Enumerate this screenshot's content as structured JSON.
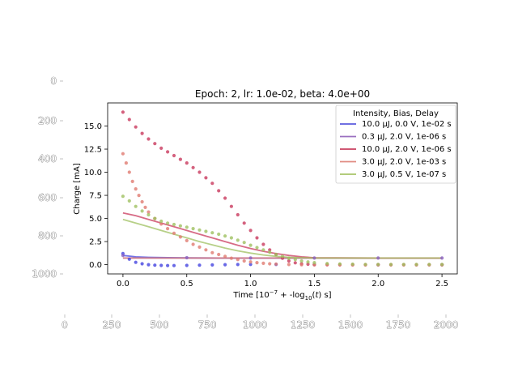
{
  "chart_data": {
    "type": "line",
    "title": "Epoch: 2, lr: 1.0e-02, beta: 4.0e+00",
    "xlabel": "Time [10$^{-7}$ + -log$_{10}$($t$) s]",
    "xlabel_parts": {
      "a": "Time [10",
      "b": "−7",
      "c": " + -log",
      "d": "10",
      "e": "(",
      "f": "t",
      "g": ") s]"
    },
    "ylabel": "Charge [mA]",
    "xlim": [
      -0.12,
      2.62
    ],
    "ylim": [
      -1.0,
      17.5
    ],
    "xticks": [
      0.0,
      0.5,
      1.0,
      1.5,
      2.0,
      2.5
    ],
    "xtick_labels": [
      "0.0",
      "0.5",
      "1.0",
      "1.5",
      "2.0",
      "2.5"
    ],
    "yticks": [
      0.0,
      2.5,
      5.0,
      7.5,
      10.0,
      12.5,
      15.0
    ],
    "ytick_labels": [
      "0.0",
      "2.5",
      "5.0",
      "7.5",
      "10.0",
      "12.5",
      "15.0"
    ],
    "legend": {
      "title": "Intensity, Bias, Delay",
      "placement": "top-right",
      "entries": [
        {
          "label": "10.0 μJ, 0.0 V, 1e-02 s",
          "color": "#5b5bde"
        },
        {
          "label": "0.3 μJ, 2.0 V, 1e-06 s",
          "color": "#9a6fc0"
        },
        {
          "label": "10.0 μJ, 2.0 V, 1e-06 s",
          "color": "#c94060"
        },
        {
          "label": "3.0 μJ, 2.0 V, 1e-03 s",
          "color": "#e08a80"
        },
        {
          "label": "3.0 μJ, 0.5 V, 1e-07 s",
          "color": "#a8c46a"
        }
      ]
    },
    "series": [
      {
        "name": "10.0 μJ, 0.0 V, 1e-02 s",
        "color": "#4444e0",
        "line": {
          "x": [
            0.0,
            0.1,
            0.2,
            0.35,
            0.5,
            0.75,
            1.0,
            1.5,
            2.0,
            2.5
          ],
          "y": [
            1.0,
            0.85,
            0.8,
            0.76,
            0.74,
            0.72,
            0.72,
            0.72,
            0.72,
            0.72
          ]
        },
        "points": {
          "x": [
            0.0,
            0.05,
            0.1,
            0.15,
            0.2,
            0.25,
            0.3,
            0.35,
            0.4,
            0.5,
            0.6,
            0.7,
            0.8,
            0.9,
            1.0,
            1.2,
            1.5,
            2.0,
            2.5
          ],
          "y": [
            1.2,
            0.6,
            0.25,
            0.1,
            0.0,
            -0.05,
            -0.08,
            -0.1,
            -0.1,
            -0.08,
            -0.05,
            -0.03,
            0.0,
            0.02,
            0.03,
            0.03,
            0.02,
            0.0,
            0.0
          ]
        }
      },
      {
        "name": "0.3 μJ, 2.0 V, 1e-06 s",
        "color": "#8a60c0",
        "line": {
          "x": [
            0.0,
            0.5,
            1.0,
            1.5,
            2.0,
            2.5
          ],
          "y": [
            0.72,
            0.72,
            0.72,
            0.72,
            0.72,
            0.72
          ]
        },
        "points": {
          "x": [
            0.0,
            0.5,
            1.0,
            1.5,
            2.0,
            2.5
          ],
          "y": [
            1.0,
            0.75,
            0.72,
            0.72,
            0.72,
            0.72
          ]
        }
      },
      {
        "name": "10.0 μJ, 2.0 V, 1e-06 s",
        "color": "#c93a5e",
        "line": {
          "x": [
            0.0,
            0.1,
            0.2,
            0.3,
            0.4,
            0.5,
            0.6,
            0.7,
            0.8,
            0.9,
            1.0,
            1.1,
            1.2,
            1.3,
            1.4,
            1.5,
            2.0,
            2.5
          ],
          "y": [
            5.6,
            5.3,
            4.9,
            4.5,
            4.1,
            3.7,
            3.3,
            2.9,
            2.5,
            2.1,
            1.75,
            1.45,
            1.2,
            1.0,
            0.85,
            0.75,
            0.72,
            0.72
          ]
        },
        "points": {
          "x": [
            0.0,
            0.05,
            0.1,
            0.15,
            0.2,
            0.25,
            0.3,
            0.35,
            0.4,
            0.45,
            0.5,
            0.55,
            0.6,
            0.65,
            0.7,
            0.75,
            0.8,
            0.85,
            0.9,
            0.95,
            1.0,
            1.05,
            1.1,
            1.15,
            1.2,
            1.25,
            1.3,
            1.35,
            1.4,
            1.45,
            1.5,
            1.6,
            1.7,
            1.8,
            1.9,
            2.0,
            2.1,
            2.2,
            2.3,
            2.4,
            2.5
          ],
          "y": [
            16.5,
            15.7,
            14.9,
            14.2,
            13.6,
            13.1,
            12.6,
            12.2,
            11.8,
            11.4,
            11.0,
            10.5,
            10.0,
            9.4,
            8.8,
            8.0,
            7.2,
            6.3,
            5.4,
            4.5,
            3.7,
            2.9,
            2.2,
            1.6,
            1.1,
            0.7,
            0.4,
            0.2,
            0.1,
            0.05,
            0.0,
            0.0,
            -0.02,
            -0.02,
            -0.02,
            -0.02,
            -0.02,
            -0.02,
            -0.02,
            -0.02,
            -0.02
          ]
        }
      },
      {
        "name": "3.0 μJ, 2.0 V, 1e-03 s",
        "color": "#e07a70",
        "line": {
          "x": [
            0.0,
            0.5,
            1.0,
            1.5,
            2.0,
            2.5
          ],
          "y": [
            0.72,
            0.72,
            0.72,
            0.72,
            0.72,
            0.72
          ]
        },
        "points": {
          "x": [
            0.0,
            0.025,
            0.05,
            0.075,
            0.1,
            0.125,
            0.15,
            0.175,
            0.2,
            0.25,
            0.3,
            0.35,
            0.4,
            0.45,
            0.5,
            0.55,
            0.6,
            0.65,
            0.7,
            0.75,
            0.8,
            0.85,
            0.9,
            0.95,
            1.0,
            1.05,
            1.1,
            1.15,
            1.2,
            1.3,
            1.4,
            1.5,
            1.6,
            1.7,
            1.8,
            1.9,
            2.0,
            2.1,
            2.2,
            2.3,
            2.4,
            2.5
          ],
          "y": [
            12.0,
            11.0,
            10.0,
            9.0,
            8.2,
            7.5,
            6.8,
            6.2,
            5.7,
            5.0,
            4.4,
            3.9,
            3.4,
            3.0,
            2.6,
            2.2,
            1.9,
            1.6,
            1.3,
            1.1,
            0.9,
            0.7,
            0.55,
            0.4,
            0.3,
            0.22,
            0.15,
            0.1,
            0.06,
            0.02,
            0.0,
            0.0,
            0.0,
            0.0,
            0.0,
            0.0,
            0.0,
            0.0,
            0.0,
            0.0,
            0.0,
            0.0
          ]
        }
      },
      {
        "name": "3.0 μJ, 0.5 V, 1e-07 s",
        "color": "#9fc060",
        "line": {
          "x": [
            0.0,
            0.1,
            0.2,
            0.3,
            0.4,
            0.5,
            0.6,
            0.7,
            0.8,
            0.9,
            1.0,
            1.1,
            1.2,
            1.3,
            1.4,
            1.5,
            2.0,
            2.5
          ],
          "y": [
            4.9,
            4.5,
            4.1,
            3.7,
            3.3,
            2.9,
            2.5,
            2.15,
            1.8,
            1.5,
            1.25,
            1.05,
            0.9,
            0.8,
            0.75,
            0.72,
            0.72,
            0.72
          ]
        },
        "points": {
          "x": [
            0.0,
            0.05,
            0.1,
            0.15,
            0.2,
            0.25,
            0.3,
            0.35,
            0.4,
            0.45,
            0.5,
            0.55,
            0.6,
            0.65,
            0.7,
            0.75,
            0.8,
            0.85,
            0.9,
            0.95,
            1.0,
            1.05,
            1.1,
            1.15,
            1.2,
            1.25,
            1.3,
            1.35,
            1.4,
            1.45,
            1.5,
            1.6,
            1.7,
            1.8,
            1.9,
            2.0,
            2.1,
            2.2,
            2.3,
            2.4,
            2.5
          ],
          "y": [
            7.4,
            6.9,
            6.3,
            5.8,
            5.4,
            5.0,
            4.7,
            4.5,
            4.35,
            4.2,
            4.05,
            3.9,
            3.75,
            3.6,
            3.45,
            3.3,
            3.1,
            2.9,
            2.65,
            2.4,
            2.1,
            1.85,
            1.6,
            1.35,
            1.1,
            0.9,
            0.7,
            0.55,
            0.4,
            0.3,
            0.22,
            0.12,
            0.08,
            0.05,
            0.03,
            0.02,
            0.02,
            0.02,
            0.02,
            0.02,
            0.02
          ]
        }
      }
    ]
  },
  "outer_axes": {
    "y_tick_labels": [
      "0",
      "200",
      "400",
      "600",
      "800",
      "1000"
    ],
    "x_tick_labels": [
      "0",
      "250",
      "500",
      "750",
      "1000",
      "1250",
      "1500",
      "1750",
      "2000"
    ]
  }
}
